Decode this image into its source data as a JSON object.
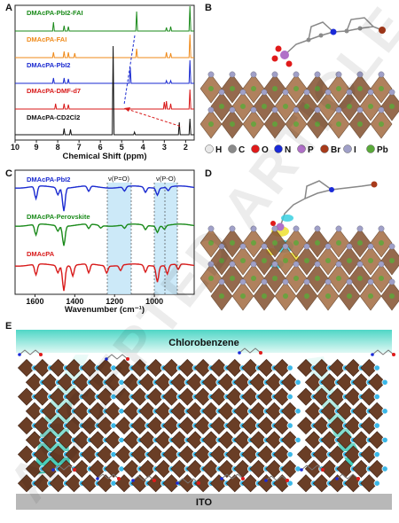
{
  "panels": {
    "A": {
      "label": "A",
      "series": [
        {
          "name": "DMAcPA-PbI2-FAI",
          "color": "#1a8a1a"
        },
        {
          "name": "DMAcPA-FAI",
          "color": "#ef8a1a"
        },
        {
          "name": "DMAcPA-PbI2",
          "color": "#1a2ad0"
        },
        {
          "name": "DMAcPA-DMF-d7",
          "color": "#d81a1a"
        },
        {
          "name": "DMAcPA-CD2Cl2",
          "color": "#111111"
        }
      ],
      "xlabel": "Chemical Shift (ppm)",
      "xticks": [
        "10",
        "9",
        "8",
        "7",
        "6",
        "5",
        "4",
        "3",
        "2"
      ]
    },
    "B": {
      "label": "B",
      "legend": [
        {
          "symbol": "H",
          "color": "#e8e8e8"
        },
        {
          "symbol": "C",
          "color": "#8a8a8a"
        },
        {
          "symbol": "O",
          "color": "#e01a1a"
        },
        {
          "symbol": "N",
          "color": "#1a2ad8"
        },
        {
          "symbol": "P",
          "color": "#b070c8"
        },
        {
          "symbol": "Br",
          "color": "#a83a1a"
        },
        {
          "symbol": "I",
          "color": "#a0a0c8"
        },
        {
          "symbol": "Pb",
          "color": "#5aaa3a"
        }
      ]
    },
    "C": {
      "label": "C",
      "series": [
        {
          "name": "DMAcPA-PbI2",
          "color": "#1a2ad0"
        },
        {
          "name": "DMAcPA-Perovskite",
          "color": "#1a8a1a"
        },
        {
          "name": "DMAcPA",
          "color": "#d81a1a"
        }
      ],
      "bands": [
        "ν(P=O)",
        "ν(P-O)"
      ],
      "xlabel": "Wavenumber (cm⁻¹)",
      "xticks": [
        "1600",
        "1400",
        "1200",
        "1000"
      ]
    },
    "D": {
      "label": "D"
    },
    "E": {
      "label": "E",
      "top_layer": "Chlorobenzene",
      "bottom_layer": "ITO"
    }
  },
  "watermark": "ACCEPTED ARTICLE PREVIEW"
}
